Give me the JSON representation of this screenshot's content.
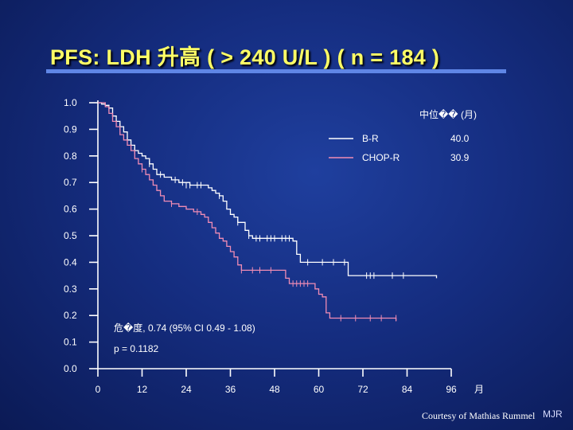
{
  "slide": {
    "title": "PFS:  LDH 升高 ( > 240 U/L )  ( n = 184 )",
    "courtesy": "Courtesy of Mathias Rummel",
    "initials": "MJR"
  },
  "colors": {
    "bg": "#152d80",
    "title": "#ffff66",
    "rule": "#5f86e6",
    "br": "#ffffff",
    "chopr": "#f08cb4"
  },
  "chart_data": {
    "type": "line",
    "xlabel": "月",
    "ylabel": "",
    "xticks": [
      0,
      12,
      24,
      36,
      48,
      60,
      72,
      84,
      96
    ],
    "yticks": [
      "0.0",
      "0.1",
      "0.2",
      "0.3",
      "0.4",
      "0.5",
      "0.6",
      "0.7",
      "0.8",
      "0.9",
      "1.0"
    ],
    "xlim": [
      0,
      96
    ],
    "ylim": [
      0,
      1
    ],
    "legend_header": "中位�� (月)",
    "legend_placement": "top-right",
    "annotations": [
      "危�度, 0.74 (95% CI 0.49 - 1.08)",
      "p = 0.1182"
    ],
    "series": [
      {
        "name": "B-R",
        "median": "40.0",
        "color": "#ffffff",
        "points": [
          [
            0,
            1.0
          ],
          [
            1,
            0.995
          ],
          [
            2,
            0.99
          ],
          [
            3,
            0.98
          ],
          [
            4,
            0.95
          ],
          [
            5,
            0.93
          ],
          [
            6,
            0.91
          ],
          [
            7,
            0.89
          ],
          [
            8,
            0.86
          ],
          [
            9,
            0.84
          ],
          [
            10,
            0.82
          ],
          [
            11,
            0.81
          ],
          [
            12,
            0.8
          ],
          [
            13,
            0.79
          ],
          [
            14,
            0.77
          ],
          [
            15,
            0.75
          ],
          [
            16,
            0.73
          ],
          [
            18,
            0.72
          ],
          [
            20,
            0.71
          ],
          [
            22,
            0.7
          ],
          [
            25,
            0.69
          ],
          [
            28,
            0.69
          ],
          [
            30,
            0.68
          ],
          [
            31,
            0.67
          ],
          [
            32,
            0.66
          ],
          [
            33,
            0.65
          ],
          [
            34,
            0.63
          ],
          [
            35,
            0.6
          ],
          [
            36,
            0.58
          ],
          [
            37,
            0.57
          ],
          [
            38,
            0.55
          ],
          [
            40,
            0.52
          ],
          [
            41,
            0.5
          ],
          [
            42,
            0.49
          ],
          [
            52,
            0.49
          ],
          [
            53,
            0.48
          ],
          [
            54,
            0.43
          ],
          [
            55,
            0.4
          ],
          [
            67,
            0.4
          ],
          [
            68,
            0.35
          ],
          [
            77,
            0.35
          ],
          [
            92,
            0.35
          ],
          [
            92,
            0.34
          ]
        ],
        "censored": [
          [
            3,
            0.98
          ],
          [
            6,
            0.91
          ],
          [
            10,
            0.82
          ],
          [
            14,
            0.77
          ],
          [
            17,
            0.73
          ],
          [
            21,
            0.71
          ],
          [
            23,
            0.7
          ],
          [
            24,
            0.69
          ],
          [
            25,
            0.69
          ],
          [
            27,
            0.69
          ],
          [
            28,
            0.69
          ],
          [
            33,
            0.65
          ],
          [
            38,
            0.55
          ],
          [
            41,
            0.5
          ],
          [
            43,
            0.49
          ],
          [
            44,
            0.49
          ],
          [
            46,
            0.49
          ],
          [
            47,
            0.49
          ],
          [
            48,
            0.49
          ],
          [
            50,
            0.49
          ],
          [
            51,
            0.49
          ],
          [
            52,
            0.49
          ],
          [
            57,
            0.4
          ],
          [
            61,
            0.4
          ],
          [
            64,
            0.4
          ],
          [
            67,
            0.4
          ],
          [
            73,
            0.35
          ],
          [
            74,
            0.35
          ],
          [
            75,
            0.35
          ],
          [
            80,
            0.35
          ],
          [
            83,
            0.35
          ]
        ]
      },
      {
        "name": "CHOP-R",
        "median": "30.9",
        "color": "#f08cb4",
        "points": [
          [
            0,
            1.0
          ],
          [
            2,
            0.985
          ],
          [
            3,
            0.96
          ],
          [
            4,
            0.93
          ],
          [
            5,
            0.91
          ],
          [
            6,
            0.88
          ],
          [
            7,
            0.86
          ],
          [
            8,
            0.84
          ],
          [
            9,
            0.82
          ],
          [
            10,
            0.79
          ],
          [
            11,
            0.77
          ],
          [
            12,
            0.75
          ],
          [
            13,
            0.73
          ],
          [
            14,
            0.71
          ],
          [
            15,
            0.69
          ],
          [
            16,
            0.67
          ],
          [
            17,
            0.65
          ],
          [
            18,
            0.63
          ],
          [
            20,
            0.62
          ],
          [
            22,
            0.61
          ],
          [
            24,
            0.6
          ],
          [
            26,
            0.59
          ],
          [
            28,
            0.58
          ],
          [
            29,
            0.57
          ],
          [
            30,
            0.55
          ],
          [
            31,
            0.53
          ],
          [
            32,
            0.51
          ],
          [
            33,
            0.49
          ],
          [
            34,
            0.48
          ],
          [
            35,
            0.46
          ],
          [
            36,
            0.44
          ],
          [
            37,
            0.42
          ],
          [
            38,
            0.39
          ],
          [
            39,
            0.37
          ],
          [
            50,
            0.37
          ],
          [
            51,
            0.34
          ],
          [
            52,
            0.32
          ],
          [
            58,
            0.32
          ],
          [
            59,
            0.3
          ],
          [
            60,
            0.28
          ],
          [
            61,
            0.27
          ],
          [
            62,
            0.21
          ],
          [
            63,
            0.19
          ],
          [
            81,
            0.19
          ],
          [
            81,
            0.18
          ]
        ],
        "censored": [
          [
            12,
            0.75
          ],
          [
            20,
            0.62
          ],
          [
            27,
            0.59
          ],
          [
            39,
            0.37
          ],
          [
            42,
            0.37
          ],
          [
            44,
            0.37
          ],
          [
            47,
            0.37
          ],
          [
            53,
            0.32
          ],
          [
            54,
            0.32
          ],
          [
            55,
            0.32
          ],
          [
            56,
            0.32
          ],
          [
            57,
            0.32
          ],
          [
            66,
            0.19
          ],
          [
            70,
            0.19
          ],
          [
            74,
            0.19
          ],
          [
            77,
            0.19
          ],
          [
            81,
            0.19
          ]
        ]
      }
    ]
  }
}
